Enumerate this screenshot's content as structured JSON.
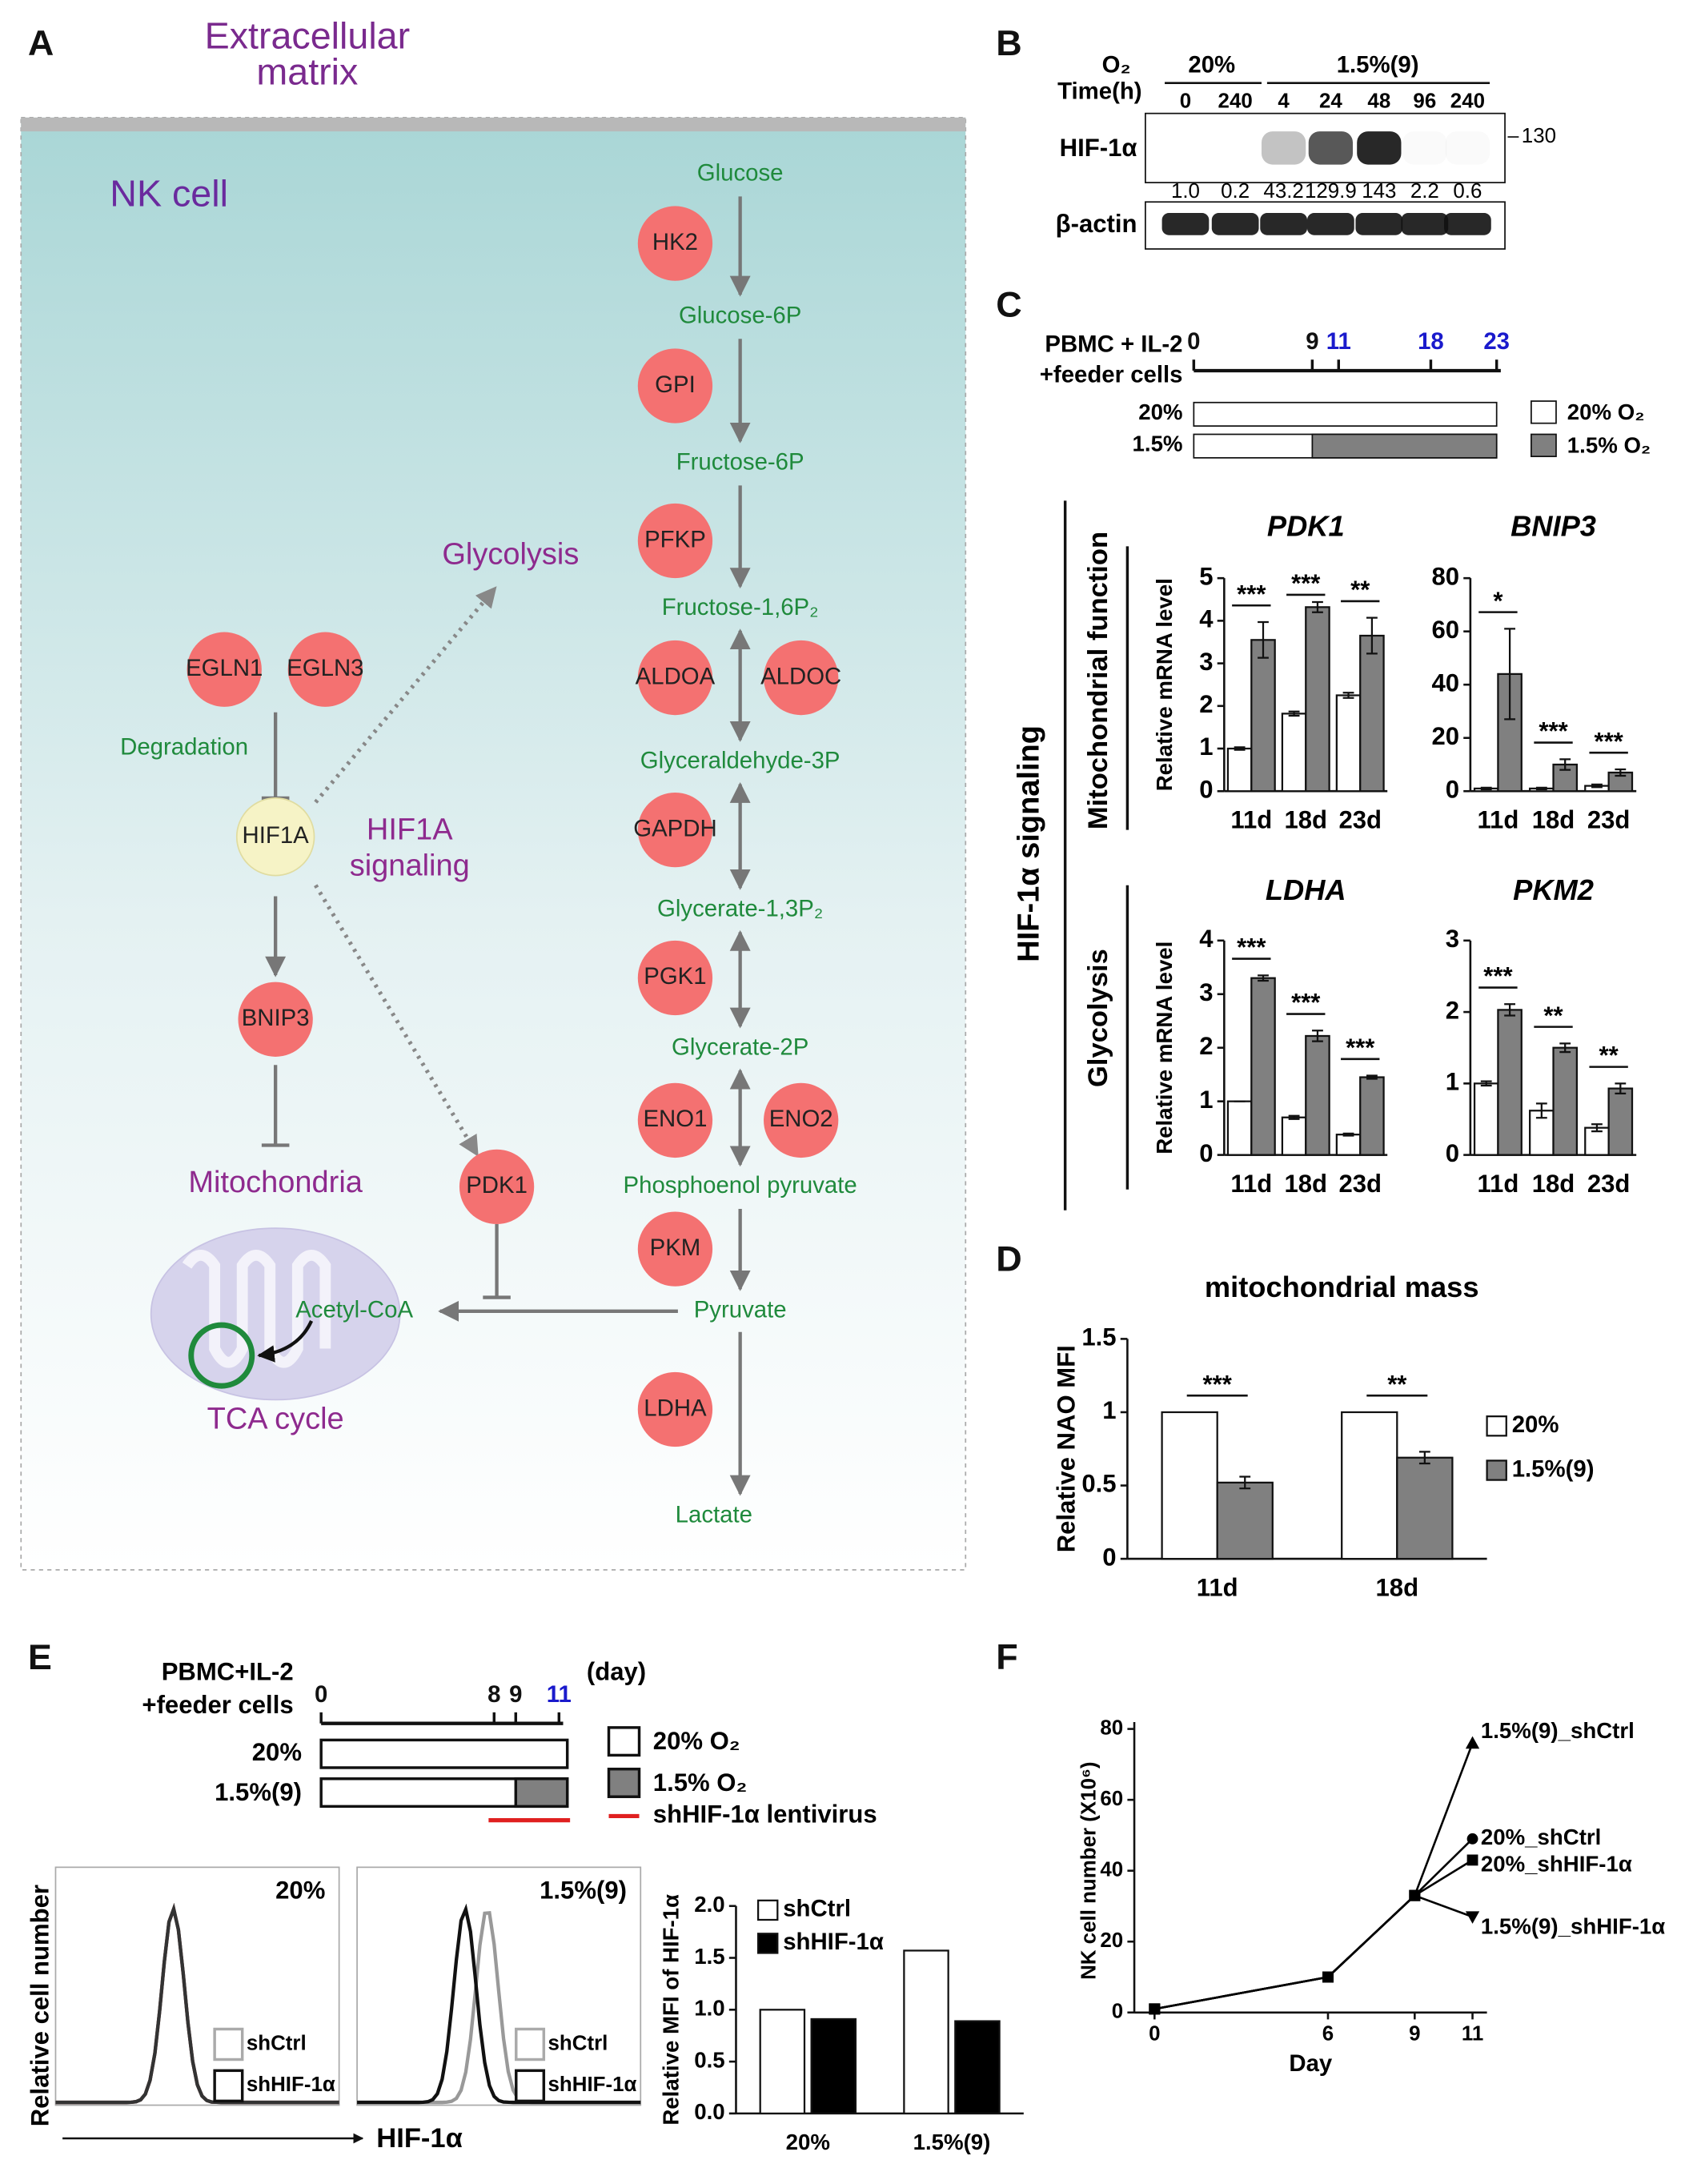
{
  "panel_labels": [
    "A",
    "B",
    "C",
    "D",
    "E",
    "F"
  ],
  "diagram": {
    "header": [
      "Extracellular",
      "matrix"
    ],
    "cell": "NK cell",
    "metabolites": [
      "Glucose",
      "Glucose-6P",
      "Fructose-6P",
      "Fructose-1,6P₂",
      "Glyceraldehyde-3P",
      "Glycerate-1,3P₂",
      "Glycerate-2P",
      "Phosphoenol pyruvate",
      "Pyruvate",
      "Lactate"
    ],
    "enzymes": [
      "HK2",
      "GPI",
      "PFKP",
      "ALDOA",
      "ALDOC",
      "GAPDH",
      "PGK1",
      "ENO1",
      "ENO2",
      "PKM",
      "LDHA",
      "EGLN1",
      "EGLN3",
      "BNIP3",
      "PDK1"
    ],
    "regulator": "HIF1A",
    "processes": [
      "Glycolysis",
      "HIF1A",
      "signaling",
      "Mitochondria",
      "TCA cycle"
    ],
    "green_labels": [
      "Degradation",
      "Acetyl-CoA"
    ]
  },
  "blot": {
    "o2_label": "O₂",
    "time_label": "Time(h)",
    "groups": [
      "20%",
      "1.5%(9)"
    ],
    "times": [
      "0",
      "240",
      "4",
      "24",
      "48",
      "96",
      "240"
    ],
    "rows": [
      "HIF-1α",
      "β-actin"
    ],
    "marker": "130",
    "quantification": [
      "1.0",
      "0.2",
      "43.2",
      "129.9",
      "143",
      "2.2",
      "0.6"
    ]
  },
  "timeline_c": {
    "start": [
      "PBMC + IL-2",
      "+feeder cells"
    ],
    "ticks": [
      0,
      9,
      11,
      18,
      23
    ],
    "tick_colors": [
      "#111111",
      "#111111",
      "#1a1acc",
      "#1a1acc",
      "#1a1acc"
    ],
    "rows": [
      "20%",
      "1.5%"
    ],
    "legend": [
      "20% O₂",
      "1.5% O₂"
    ],
    "side_labels": [
      "HIF-1α signaling",
      "Mitochondrial function",
      "Glycolysis"
    ]
  },
  "timeline_e": {
    "start": [
      "PBMC+IL-2",
      "+feeder cells"
    ],
    "ticks": [
      0,
      8,
      9,
      11
    ],
    "tick_colors": [
      "#111111",
      "#111111",
      "#111111",
      "#1a1acc"
    ],
    "unit": "(day)",
    "rows": [
      "20%",
      "1.5%(9)"
    ],
    "legend": [
      "20% O₂",
      "1.5% O₂",
      "shHIF-1α lentivirus"
    ]
  },
  "histograms": {
    "panels": [
      "20%",
      "1.5%(9)"
    ],
    "legend": [
      "shCtrl",
      "shHIF-1α"
    ],
    "ylabel": "Relative cell number",
    "xlabel": "HIF-1α"
  },
  "chart_data": [
    {
      "type": "bar",
      "title": "PDK1",
      "ylabel": "Relative mRNA level",
      "categories": [
        "11d",
        "18d",
        "23d"
      ],
      "ylim": [
        0,
        5
      ],
      "yticks": [
        0,
        1,
        2,
        3,
        4,
        5
      ],
      "series": [
        {
          "color": "#ffffff",
          "values": [
            1.0,
            1.82,
            2.25
          ],
          "errors": [
            0.03,
            0.05,
            0.06
          ]
        },
        {
          "color": "#808080",
          "values": [
            3.55,
            4.32,
            3.65
          ],
          "errors": [
            0.42,
            0.12,
            0.42
          ]
        }
      ],
      "significance": [
        "***",
        "***",
        "**"
      ]
    },
    {
      "type": "bar",
      "title": "BNIP3",
      "categories": [
        "11d",
        "18d",
        "23d"
      ],
      "ylim": [
        0,
        80
      ],
      "yticks": [
        0,
        20,
        40,
        60,
        80
      ],
      "series": [
        {
          "color": "#ffffff",
          "values": [
            1,
            1,
            2
          ],
          "errors": [
            0.3,
            0.3,
            0.5
          ]
        },
        {
          "color": "#808080",
          "values": [
            44,
            10,
            7
          ],
          "errors": [
            17,
            2,
            1.2
          ]
        }
      ],
      "significance": [
        "*",
        "***",
        "***"
      ]
    },
    {
      "type": "bar",
      "title": "LDHA",
      "ylabel": "Relative mRNA level",
      "categories": [
        "11d",
        "18d",
        "23d"
      ],
      "ylim": [
        0,
        4
      ],
      "yticks": [
        0,
        1,
        2,
        3,
        4
      ],
      "series": [
        {
          "color": "#ffffff",
          "values": [
            1,
            0.7,
            0.38
          ],
          "errors": [
            0,
            0.03,
            0.02
          ]
        },
        {
          "color": "#808080",
          "values": [
            3.3,
            2.22,
            1.45
          ],
          "errors": [
            0.05,
            0.1,
            0.03
          ]
        }
      ],
      "significance": [
        "***",
        "***",
        "***"
      ]
    },
    {
      "type": "bar",
      "title": "PKM2",
      "categories": [
        "11d",
        "18d",
        "23d"
      ],
      "ylim": [
        0,
        3
      ],
      "yticks": [
        0,
        1,
        2,
        3
      ],
      "series": [
        {
          "color": "#ffffff",
          "values": [
            1,
            0.62,
            0.38
          ],
          "errors": [
            0.03,
            0.1,
            0.05
          ]
        },
        {
          "color": "#808080",
          "values": [
            2.03,
            1.5,
            0.93
          ],
          "errors": [
            0.08,
            0.06,
            0.07
          ]
        }
      ],
      "significance": [
        "***",
        "**",
        "**"
      ]
    },
    {
      "type": "bar",
      "title": "mitochondrial mass",
      "ylabel": "Relative NAO MFI",
      "categories": [
        "11d",
        "18d"
      ],
      "ylim": [
        0,
        1.5
      ],
      "yticks": [
        0,
        0.5,
        1,
        1.5
      ],
      "series": [
        {
          "name": "20%",
          "color": "#ffffff",
          "values": [
            1,
            1
          ]
        },
        {
          "name": "1.5%(9)",
          "color": "#808080",
          "values": [
            0.52,
            0.69
          ],
          "errors": [
            0.04,
            0.04
          ]
        }
      ],
      "significance": [
        "***",
        "**"
      ]
    },
    {
      "type": "bar",
      "ylabel": "Relative MFI of HIF-1α",
      "categories": [
        "20%",
        "1.5%(9)"
      ],
      "ylim": [
        0,
        2
      ],
      "yticks": [
        {
          "value": 0,
          "label": "0.0"
        },
        {
          "value": 0.5,
          "label": "0.5"
        },
        {
          "value": 1,
          "label": "1.0"
        },
        {
          "value": 1.5,
          "label": "1.5"
        },
        {
          "value": 2,
          "label": "2.0"
        }
      ],
      "series": [
        {
          "name": "shCtrl",
          "color": "#ffffff",
          "values": [
            1.0,
            1.57
          ]
        },
        {
          "name": "shHIF-1α",
          "color": "#000000",
          "values": [
            0.91,
            0.89
          ]
        }
      ]
    },
    {
      "type": "line",
      "ylabel": "NK cell number (X10⁶)",
      "xlabel": "Day",
      "x": [
        0,
        6,
        9,
        11
      ],
      "xlim": [
        -0.7,
        11.5
      ],
      "xticks": [
        0,
        6,
        9,
        11
      ],
      "ylim": [
        0,
        80
      ],
      "yticks": [
        0,
        20,
        40,
        60,
        80
      ],
      "series": [
        {
          "name": "1.5%(9)_shCtrl",
          "color": "#000000",
          "marker": "triangle-up",
          "values": [
            1,
            10,
            33,
            76
          ]
        },
        {
          "name": "20%_shCtrl",
          "color": "#000000",
          "marker": "circle",
          "values": [
            1,
            10,
            33,
            49
          ]
        },
        {
          "name": "20%_shHIF-1α",
          "color": "#000000",
          "marker": "square",
          "values": [
            1,
            10,
            33,
            43
          ]
        },
        {
          "name": "1.5%(9)_shHIF-1α",
          "color": "#000000",
          "marker": "triangle-down",
          "values": [
            1,
            10,
            33,
            27
          ]
        }
      ]
    }
  ]
}
